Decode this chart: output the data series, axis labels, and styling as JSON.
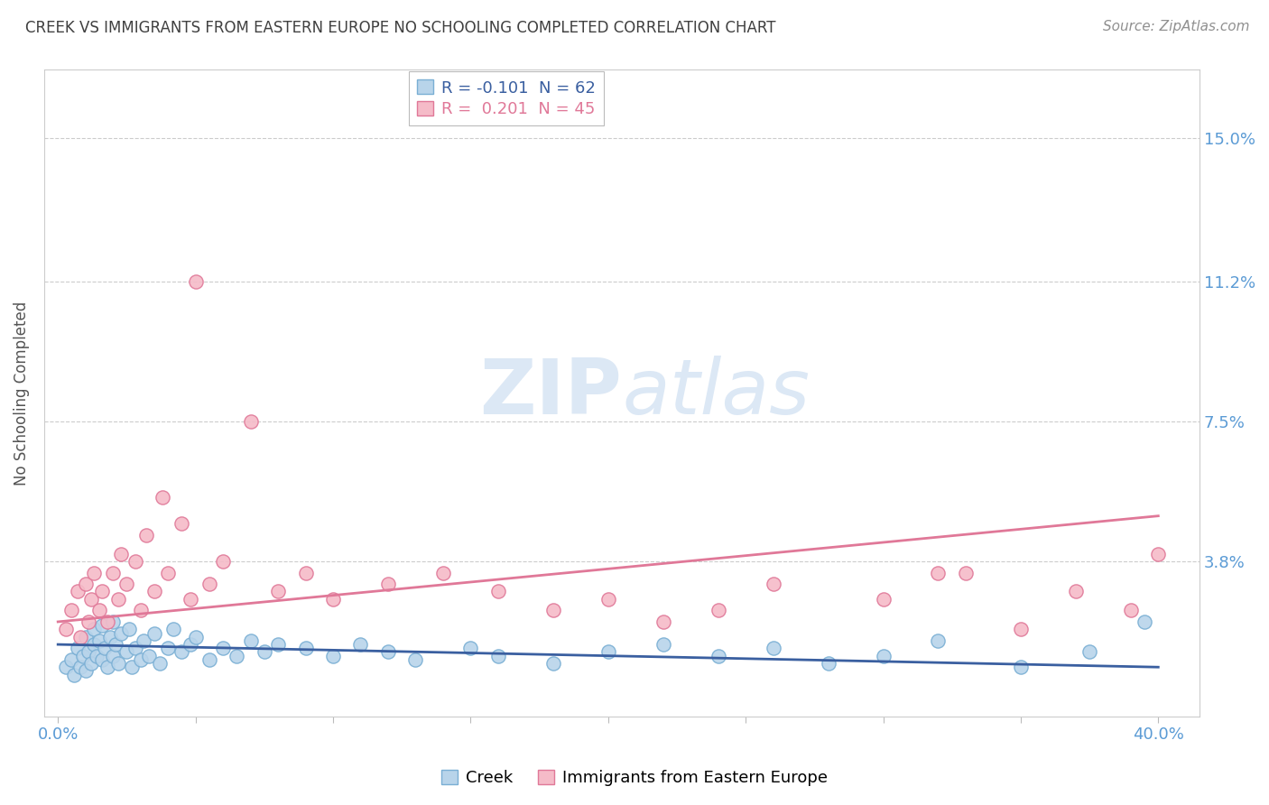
{
  "title": "CREEK VS IMMIGRANTS FROM EASTERN EUROPE NO SCHOOLING COMPLETED CORRELATION CHART",
  "source": "Source: ZipAtlas.com",
  "ylabel": "No Schooling Completed",
  "yticks": [
    "15.0%",
    "11.2%",
    "7.5%",
    "3.8%"
  ],
  "ytick_vals": [
    0.15,
    0.112,
    0.075,
    0.038
  ],
  "xtick_vals": [
    0.0,
    0.05,
    0.1,
    0.15,
    0.2,
    0.25,
    0.3,
    0.35,
    0.4
  ],
  "xlim": [
    -0.005,
    0.415
  ],
  "ylim": [
    -0.003,
    0.168
  ],
  "legend_series1": "Creek",
  "legend_series2": "Immigrants from Eastern Europe",
  "color_creek_fill": "#b8d4ea",
  "color_creek_edge": "#7aafd4",
  "color_creek_line": "#3a5fa0",
  "color_ee_fill": "#f5bbc8",
  "color_ee_edge": "#e07898",
  "color_ee_line": "#e07898",
  "color_title": "#404040",
  "color_source": "#909090",
  "color_ytick": "#5b9bd5",
  "color_xtick": "#5b9bd5",
  "background_color": "#ffffff",
  "grid_color": "#cccccc",
  "watermark_color": "#dce8f5",
  "creek_R": -0.101,
  "creek_N": 62,
  "ee_R": 0.201,
  "ee_N": 45,
  "creek_line_x0": 0.0,
  "creek_line_x1": 0.4,
  "creek_line_y0": 0.016,
  "creek_line_y1": 0.01,
  "ee_line_x0": 0.0,
  "ee_line_x1": 0.4,
  "ee_line_y0": 0.022,
  "ee_line_y1": 0.05,
  "creek_points_x": [
    0.003,
    0.005,
    0.006,
    0.007,
    0.008,
    0.009,
    0.01,
    0.01,
    0.011,
    0.012,
    0.013,
    0.013,
    0.014,
    0.015,
    0.016,
    0.016,
    0.017,
    0.018,
    0.019,
    0.02,
    0.02,
    0.021,
    0.022,
    0.023,
    0.025,
    0.026,
    0.027,
    0.028,
    0.03,
    0.031,
    0.033,
    0.035,
    0.037,
    0.04,
    0.042,
    0.045,
    0.048,
    0.05,
    0.055,
    0.06,
    0.065,
    0.07,
    0.075,
    0.08,
    0.09,
    0.1,
    0.11,
    0.12,
    0.13,
    0.15,
    0.16,
    0.18,
    0.2,
    0.22,
    0.24,
    0.26,
    0.28,
    0.3,
    0.32,
    0.35,
    0.375,
    0.395
  ],
  "creek_points_y": [
    0.01,
    0.012,
    0.008,
    0.015,
    0.01,
    0.013,
    0.018,
    0.009,
    0.014,
    0.011,
    0.016,
    0.02,
    0.013,
    0.017,
    0.012,
    0.021,
    0.015,
    0.01,
    0.018,
    0.013,
    0.022,
    0.016,
    0.011,
    0.019,
    0.014,
    0.02,
    0.01,
    0.015,
    0.012,
    0.017,
    0.013,
    0.019,
    0.011,
    0.015,
    0.02,
    0.014,
    0.016,
    0.018,
    0.012,
    0.015,
    0.013,
    0.017,
    0.014,
    0.016,
    0.015,
    0.013,
    0.016,
    0.014,
    0.012,
    0.015,
    0.013,
    0.011,
    0.014,
    0.016,
    0.013,
    0.015,
    0.011,
    0.013,
    0.017,
    0.01,
    0.014,
    0.022
  ],
  "ee_points_x": [
    0.003,
    0.005,
    0.007,
    0.008,
    0.01,
    0.011,
    0.012,
    0.013,
    0.015,
    0.016,
    0.018,
    0.02,
    0.022,
    0.023,
    0.025,
    0.028,
    0.03,
    0.032,
    0.035,
    0.038,
    0.04,
    0.045,
    0.048,
    0.05,
    0.055,
    0.06,
    0.07,
    0.08,
    0.09,
    0.1,
    0.12,
    0.14,
    0.16,
    0.18,
    0.2,
    0.22,
    0.24,
    0.26,
    0.3,
    0.32,
    0.35,
    0.37,
    0.39,
    0.4,
    0.33
  ],
  "ee_points_y": [
    0.02,
    0.025,
    0.03,
    0.018,
    0.032,
    0.022,
    0.028,
    0.035,
    0.025,
    0.03,
    0.022,
    0.035,
    0.028,
    0.04,
    0.032,
    0.038,
    0.025,
    0.045,
    0.03,
    0.055,
    0.035,
    0.048,
    0.028,
    0.112,
    0.032,
    0.038,
    0.075,
    0.03,
    0.035,
    0.028,
    0.032,
    0.035,
    0.03,
    0.025,
    0.028,
    0.022,
    0.025,
    0.032,
    0.028,
    0.035,
    0.02,
    0.03,
    0.025,
    0.04,
    0.035
  ]
}
